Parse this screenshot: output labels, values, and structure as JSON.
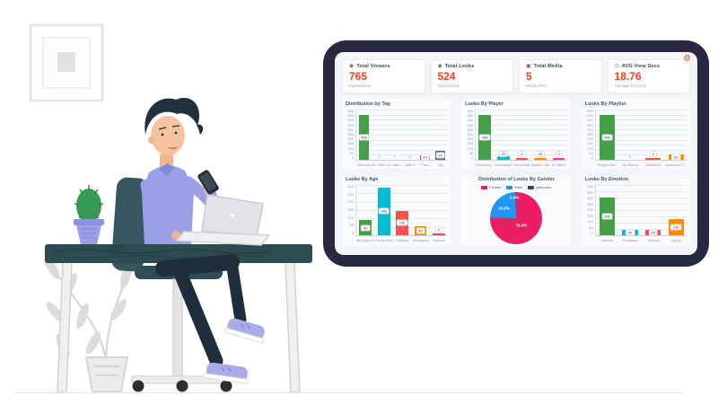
{
  "colors": {
    "accent_red": "#fb3a1e",
    "gear_orange": "#f4511e",
    "tablet_frame": "#282840",
    "dashboard_bg": "#f3f5f8"
  },
  "header": {
    "settings_glyph": "⚙"
  },
  "stats_cards": [
    {
      "icon_name": "eye-icon",
      "icon_glyph": "◉",
      "label": "Total Viewers",
      "value": "765",
      "sublabel": "Impressions"
    },
    {
      "icon_name": "looks-icon",
      "icon_glyph": "◉",
      "label": "Total Looks",
      "value": "524",
      "sublabel": "Impressions"
    },
    {
      "icon_name": "media-icon",
      "icon_glyph": "▣",
      "label": "Total Media",
      "value": "5",
      "sublabel": "Media Files"
    },
    {
      "icon_name": "clock-icon",
      "icon_glyph": "◷",
      "label": "AVG View Secs",
      "value": "18.76",
      "sublabel": "Average Seconds"
    }
  ],
  "chart_data": [
    {
      "type": "bar",
      "title": "Distribution by Tag",
      "categories": [
        "Newyork",
        "4k Video 2",
        "4k Video 1",
        "Video1",
        "Paris",
        "City"
      ],
      "values": [
        450,
        0,
        0,
        0,
        47,
        87
      ],
      "colors": [
        "#43a047",
        "#9e9e9e",
        "#9e9e9e",
        "#9e9e9e",
        "#e91e63",
        "#546e7a"
      ],
      "ylim": [
        0,
        500
      ],
      "ytick": 50,
      "grid": true,
      "legend": []
    },
    {
      "type": "bar",
      "title": "Looks By Player",
      "categories": [
        "Bluebarry ...",
        "Bluebarry2",
        "Tablet Nati...",
        "Nadine Tab...",
        "4k Tablet"
      ],
      "values": [
        450,
        37,
        4,
        20,
        3
      ],
      "colors": [
        "#43a047",
        "#00bcd4",
        "#ef5350",
        "#fb8c00",
        "#ec407a"
      ],
      "ylim": [
        0,
        500
      ],
      "ytick": 50,
      "grid": true,
      "legend": []
    },
    {
      "type": "bar",
      "title": "Looks By Playlist",
      "categories": [
        "People Wal...",
        "4k Videos",
        "Audience",
        "Audience C..."
      ],
      "values": [
        450,
        0,
        4,
        50
      ],
      "colors": [
        "#43a047",
        "#9e9e9e",
        "#ef5350",
        "#fb8c00"
      ],
      "ylim": [
        0,
        500
      ],
      "ytick": 50,
      "grid": true,
      "legend": []
    },
    {
      "type": "bar",
      "title": "Looks By Age",
      "categories": [
        "Mid Aged A...",
        "Young Adul...",
        "Children",
        "Teenagers",
        "Seniors"
      ],
      "values": [
        90,
        285,
        145,
        55,
        2
      ],
      "colors": [
        "#43a047",
        "#00bcd4",
        "#ef5350",
        "#fb8c00",
        "#ec407a"
      ],
      "ylim": [
        0,
        300
      ],
      "ytick": 50,
      "grid": true,
      "legend": []
    },
    {
      "type": "pie",
      "title": "Distribution of Looks By Gender",
      "legend": [
        "Female",
        "Male",
        "Unknown"
      ],
      "legend_position": "top",
      "values": [
        75.4,
        24.2,
        0.4
      ],
      "labels": [
        "75.4%",
        "24.2%",
        "0.4%"
      ],
      "colors": [
        "#ec1e63",
        "#2196f3",
        "#37474f"
      ]
    },
    {
      "type": "bar",
      "title": "Looks By Emotion",
      "categories": [
        "Neutral",
        "Surprised",
        "Serious",
        "Happy"
      ],
      "values": [
        300,
        40,
        45,
        130
      ],
      "colors": [
        "#43a047",
        "#00bcd4",
        "#ef5350",
        "#fb8c00"
      ],
      "ylim": [
        0,
        400
      ],
      "ytick": 50,
      "grid": true,
      "legend": []
    }
  ]
}
